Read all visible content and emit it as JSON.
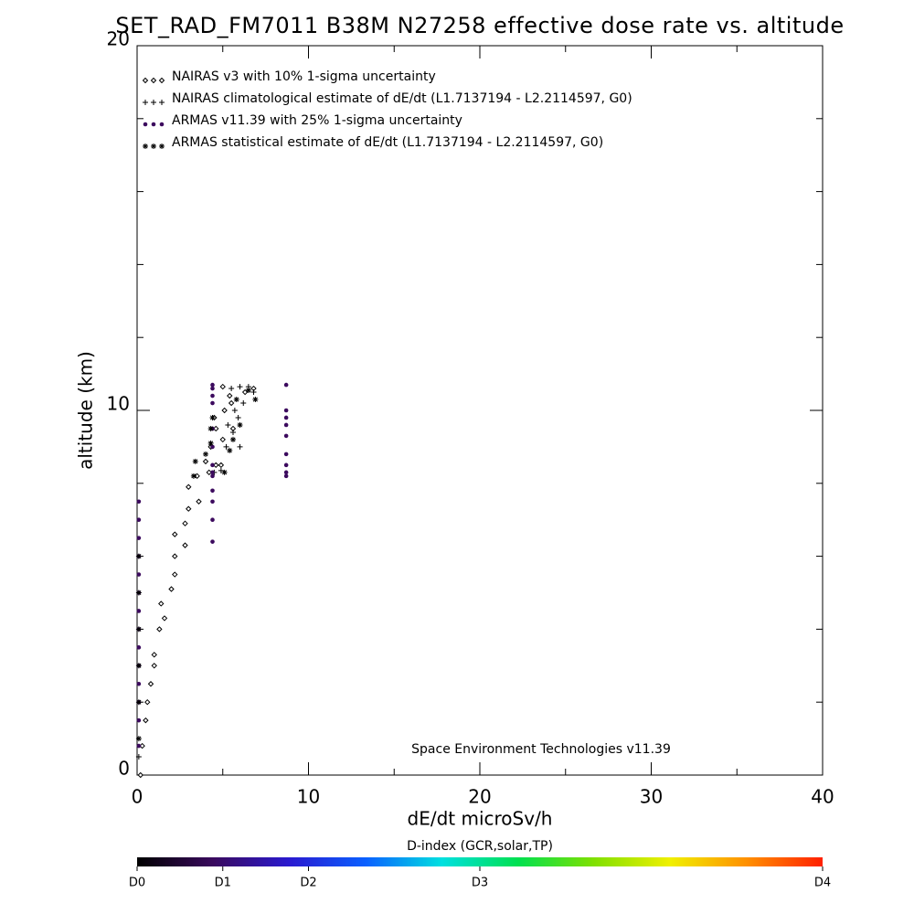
{
  "chart_data": {
    "type": "scatter",
    "title": "SET_RAD_FM7011  B38M N27258 effective dose rate vs. altitude",
    "x_label": "dE/dt microSv/h",
    "y_label": "altitude (km)",
    "annotation": "Space Environment Technologies v11.39",
    "xlim": [
      0,
      40
    ],
    "ylim": [
      0,
      20
    ],
    "xticks": [
      0,
      10,
      20,
      30,
      40
    ],
    "yticks": [
      0,
      10,
      20
    ],
    "xminorticks": [
      5,
      15,
      25,
      35
    ],
    "yminorticks": [
      2,
      4,
      6,
      8,
      12,
      14,
      16,
      18
    ],
    "series": [
      {
        "name": "NAIRAS v3 with 10% 1-sigma uncertainty",
        "marker": "diamond",
        "color": "#000000",
        "x": [
          0.2,
          0.3,
          0.5,
          0.6,
          0.8,
          1.0,
          1.0,
          1.3,
          1.6,
          1.4,
          2.0,
          2.2,
          2.2,
          2.8,
          2.2,
          2.8,
          3.0,
          3.6,
          3.0,
          3.5,
          4.2,
          4.6,
          4.0,
          4.9,
          4.3,
          5.0,
          4.6,
          4.5,
          5.6,
          5.1,
          5.5,
          5.4,
          6.3,
          5.0,
          6.8
        ],
        "y": [
          0.0,
          0.8,
          1.5,
          2.0,
          2.5,
          3.0,
          3.3,
          4.0,
          4.3,
          4.7,
          5.1,
          5.5,
          6.0,
          6.3,
          6.6,
          6.9,
          7.3,
          7.5,
          7.9,
          8.2,
          8.3,
          8.5,
          8.6,
          8.5,
          9.0,
          9.2,
          9.5,
          9.8,
          9.5,
          10.0,
          10.2,
          10.4,
          10.5,
          10.65,
          10.6
        ]
      },
      {
        "name": "NAIRAS climatological estimate of dE/dt (L1.7137194 - L2.2114597, G0)",
        "marker": "plus",
        "color": "#000000",
        "x": [
          0.1,
          4.5,
          4.9,
          5.2,
          6.0,
          5.6,
          5.3,
          5.9,
          5.7,
          6.2,
          6.8,
          5.5,
          6.0,
          6.5
        ],
        "y": [
          0.5,
          8.3,
          8.35,
          9.0,
          9.0,
          9.4,
          9.6,
          9.8,
          10.0,
          10.2,
          10.5,
          10.6,
          10.65,
          10.65
        ]
      },
      {
        "name": "ARMAS v11.39 with 25% 1-sigma uncertainty",
        "marker": "dot",
        "color": "#3c0a5e",
        "x": [
          4.4,
          4.4,
          4.4,
          4.4,
          4.4,
          4.4,
          4.4,
          4.4,
          4.4,
          4.4,
          4.4,
          4.4,
          4.4,
          8.7,
          8.7,
          8.7,
          8.7,
          8.7,
          8.7,
          8.7,
          8.7,
          8.7,
          0.1,
          0.1,
          0.1,
          0.1,
          0.1,
          0.1,
          0.1,
          0.1,
          0.1,
          0.1,
          0.1,
          0.1,
          0.1,
          0.1
        ],
        "y": [
          10.7,
          10.6,
          10.4,
          10.2,
          9.5,
          9.0,
          8.5,
          8.3,
          8.2,
          7.8,
          7.5,
          7.0,
          6.4,
          10.7,
          10.0,
          9.8,
          9.6,
          9.3,
          8.8,
          8.5,
          8.3,
          8.2,
          0.8,
          1.5,
          2.0,
          2.5,
          3.0,
          3.5,
          4.0,
          4.5,
          5.0,
          5.5,
          6.0,
          6.5,
          7.0,
          7.5
        ]
      },
      {
        "name": "ARMAS statistical estimate of dE/dt (L1.7137194 - L2.2114597, G0)",
        "marker": "asterisk",
        "color": "#000000",
        "x": [
          3.3,
          3.4,
          4.0,
          4.3,
          4.3,
          4.4,
          5.1,
          5.4,
          5.6,
          6.0,
          5.8,
          6.9,
          6.5,
          0.1,
          0.1,
          0.1,
          0.1,
          0.1,
          0.1
        ],
        "y": [
          8.2,
          8.6,
          8.8,
          9.1,
          9.5,
          9.8,
          8.3,
          8.9,
          9.2,
          9.6,
          10.3,
          10.3,
          10.55,
          1.0,
          2.0,
          3.0,
          4.0,
          5.0,
          6.0
        ]
      }
    ],
    "colorbar": {
      "title": "D-index (GCR,solar,TP)",
      "lim": [
        0,
        8
      ],
      "ticks": [
        {
          "value": 0,
          "label": "D0"
        },
        {
          "value": 1,
          "label": "D1"
        },
        {
          "value": 2,
          "label": "D2"
        },
        {
          "value": 4,
          "label": "D3"
        },
        {
          "value": 8,
          "label": "D4"
        }
      ],
      "colors": [
        "#000000",
        "#3a0a5e",
        "#2a1ad0",
        "#0a60ff",
        "#00e0e0",
        "#00e050",
        "#80e000",
        "#f0f000",
        "#ff9000",
        "#ff2000"
      ]
    }
  }
}
